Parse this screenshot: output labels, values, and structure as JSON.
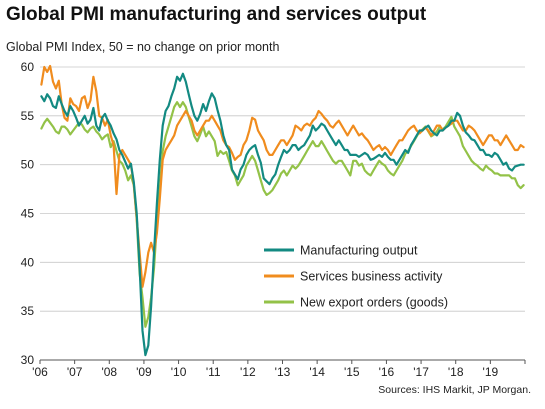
{
  "header": {
    "title": "Global PMI manufacturing and services output",
    "subtitle": "Global  PMI Index, 50 = no change on prior month",
    "source": "Sources: IHS Markit, JP Morgan."
  },
  "chart_data": {
    "type": "line",
    "title": "Global PMI manufacturing and services output",
    "subtitle": "Global  PMI Index, 50 = no change on prior month",
    "x_start": "2006-01",
    "x_tick_labels": [
      "'06",
      "'07",
      "'08",
      "'09",
      "'10",
      "'11",
      "'12",
      "'13",
      "'14",
      "'15",
      "'16",
      "'17",
      "'18",
      "'19"
    ],
    "ylim": [
      30,
      60
    ],
    "y_ticks": [
      30,
      35,
      40,
      45,
      50,
      55,
      60
    ],
    "grid": true,
    "legend_position": "bottom-right",
    "series": [
      {
        "name": "Manufacturing output",
        "color": "#138a82",
        "values": [
          57.0,
          56.5,
          57.2,
          56.8,
          56.0,
          55.8,
          57.0,
          56.2,
          55.5,
          55.0,
          56.0,
          55.5,
          54.8,
          54.0,
          54.5,
          55.0,
          54.2,
          54.6,
          55.8,
          54.0,
          53.5,
          54.8,
          55.2,
          54.5,
          54.0,
          53.2,
          52.6,
          51.5,
          51.0,
          50.3,
          49.6,
          50.1,
          48.2,
          45.0,
          39.5,
          33.0,
          30.5,
          31.5,
          35.5,
          41.0,
          46.0,
          50.5,
          54.0,
          55.5,
          56.0,
          57.0,
          57.8,
          59.0,
          58.6,
          59.3,
          58.5,
          57.2,
          56.0,
          55.0,
          54.5,
          55.2,
          56.2,
          55.5,
          56.5,
          57.3,
          56.8,
          55.6,
          54.5,
          53.0,
          52.0,
          51.5,
          49.5,
          49.0,
          48.5,
          49.5,
          50.0,
          51.0,
          51.5,
          51.8,
          52.0,
          51.0,
          50.2,
          48.6,
          48.3,
          48.0,
          48.6,
          49.0,
          50.0,
          50.8,
          51.5,
          51.2,
          51.5,
          52.0,
          52.0,
          51.5,
          51.8,
          52.0,
          52.5,
          53.0,
          54.0,
          53.5,
          53.8,
          54.2,
          54.0,
          53.5,
          53.0,
          52.5,
          52.0,
          52.5,
          52.0,
          51.5,
          51.5,
          51.0,
          51.0,
          51.0,
          50.8,
          51.0,
          51.2,
          51.0,
          50.5,
          50.6,
          50.8,
          51.0,
          50.8,
          51.2,
          50.8,
          50.5,
          50.5,
          50.0,
          50.5,
          51.0,
          51.5,
          51.2,
          52.0,
          52.5,
          53.0,
          53.5,
          53.5,
          53.8,
          54.0,
          53.5,
          53.2,
          53.0,
          53.5,
          53.5,
          53.8,
          54.0,
          54.5,
          54.5,
          55.3,
          55.0,
          54.0,
          53.3,
          53.0,
          52.6,
          52.5,
          52.0,
          51.5,
          51.5,
          51.0,
          51.0,
          50.8,
          51.2,
          51.0,
          50.5,
          50.0,
          50.2,
          49.6,
          49.4,
          49.8,
          49.9,
          50.0,
          50.0
        ]
      },
      {
        "name": "Services business activity",
        "color": "#f08c1e",
        "values": [
          58.2,
          60.0,
          59.5,
          60.1,
          58.5,
          57.8,
          58.6,
          56.2,
          54.8,
          54.5,
          56.8,
          56.2,
          56.0,
          55.5,
          56.8,
          57.0,
          55.8,
          56.6,
          59.0,
          57.5,
          55.0,
          54.8,
          54.0,
          54.6,
          53.0,
          52.0,
          47.0,
          51.0,
          51.5,
          51.0,
          50.5,
          50.0,
          48.0,
          44.5,
          41.0,
          37.5,
          39.0,
          41.0,
          42.0,
          41.0,
          43.0,
          46.5,
          50.5,
          51.5,
          52.0,
          52.5,
          53.0,
          54.0,
          54.5,
          55.0,
          55.5,
          55.0,
          54.5,
          53.5,
          53.0,
          53.5,
          54.0,
          54.5,
          54.5,
          55.0,
          54.5,
          54.0,
          53.5,
          52.5,
          52.0,
          51.8,
          51.2,
          50.5,
          50.8,
          51.0,
          52.0,
          52.5,
          53.5,
          54.8,
          54.6,
          53.5,
          53.0,
          52.5,
          51.5,
          51.0,
          51.0,
          51.5,
          52.0,
          52.5,
          52.5,
          52.0,
          52.5,
          53.0,
          54.0,
          53.8,
          53.5,
          54.0,
          54.2,
          54.0,
          54.5,
          54.8,
          55.5,
          55.2,
          54.8,
          54.5,
          54.0,
          53.8,
          54.2,
          54.5,
          54.0,
          53.5,
          53.0,
          53.5,
          54.0,
          53.5,
          53.0,
          53.2,
          52.8,
          52.5,
          52.0,
          51.5,
          51.8,
          52.0,
          51.5,
          51.8,
          51.5,
          51.0,
          51.5,
          52.0,
          52.5,
          52.5,
          53.0,
          53.5,
          53.8,
          54.0,
          53.5,
          53.2,
          53.5,
          53.8,
          53.5,
          53.0,
          53.5,
          54.0,
          54.0,
          53.5,
          53.8,
          54.0,
          54.2,
          54.5,
          54.5,
          54.0,
          53.5,
          53.5,
          54.0,
          53.8,
          53.5,
          53.0,
          52.5,
          52.0,
          52.5,
          53.0,
          53.0,
          52.5,
          52.5,
          52.0,
          52.5,
          53.0,
          52.5,
          52.0,
          51.5,
          51.5,
          52.0,
          51.8
        ]
      },
      {
        "name": "New export orders (goods)",
        "color": "#93c248",
        "values": [
          53.7,
          54.3,
          54.7,
          54.3,
          53.9,
          53.4,
          53.2,
          53.9,
          53.9,
          53.6,
          53.1,
          53.5,
          53.9,
          54.3,
          54.1,
          53.6,
          53.3,
          53.7,
          53.9,
          53.4,
          53.1,
          52.6,
          52.9,
          53.1,
          51.8,
          52.4,
          51.4,
          50.4,
          50.1,
          49.4,
          48.4,
          48.9,
          47.9,
          44.4,
          38.9,
          36.4,
          33.4,
          34.4,
          36.4,
          39.4,
          43.9,
          47.4,
          51.4,
          52.9,
          53.9,
          54.9,
          55.9,
          56.4,
          55.9,
          56.4,
          55.9,
          54.9,
          53.9,
          52.9,
          52.4,
          53.1,
          53.9,
          52.9,
          53.4,
          52.9,
          52.4,
          50.9,
          51.4,
          51.1,
          51.3,
          50.4,
          49.4,
          48.9,
          47.9,
          48.4,
          48.9,
          49.9,
          50.4,
          50.9,
          50.4,
          49.4,
          48.4,
          47.4,
          46.9,
          47.1,
          47.4,
          47.9,
          48.4,
          49.1,
          49.4,
          48.9,
          49.4,
          49.9,
          49.6,
          49.9,
          50.4,
          50.9,
          51.4,
          51.9,
          52.4,
          51.9,
          51.9,
          52.4,
          51.9,
          51.4,
          50.9,
          50.4,
          50.1,
          50.4,
          50.4,
          49.9,
          49.4,
          48.9,
          50.4,
          50.4,
          49.9,
          50.1,
          49.4,
          49.1,
          48.9,
          49.4,
          49.9,
          50.4,
          50.1,
          49.9,
          49.4,
          49.1,
          48.9,
          49.4,
          49.9,
          50.4,
          51.1,
          51.4,
          51.9,
          52.4,
          52.9,
          53.4,
          53.6,
          53.9,
          53.4,
          52.9,
          53.1,
          53.4,
          53.9,
          53.6,
          53.9,
          54.4,
          54.9,
          53.9,
          53.4,
          52.9,
          51.9,
          51.4,
          50.9,
          50.4,
          50.1,
          49.9,
          49.6,
          49.4,
          49.9,
          49.6,
          49.4,
          49.1,
          49.1,
          48.9,
          48.9,
          48.9,
          48.9,
          48.6,
          48.6,
          47.9,
          47.6,
          47.9
        ]
      }
    ]
  }
}
